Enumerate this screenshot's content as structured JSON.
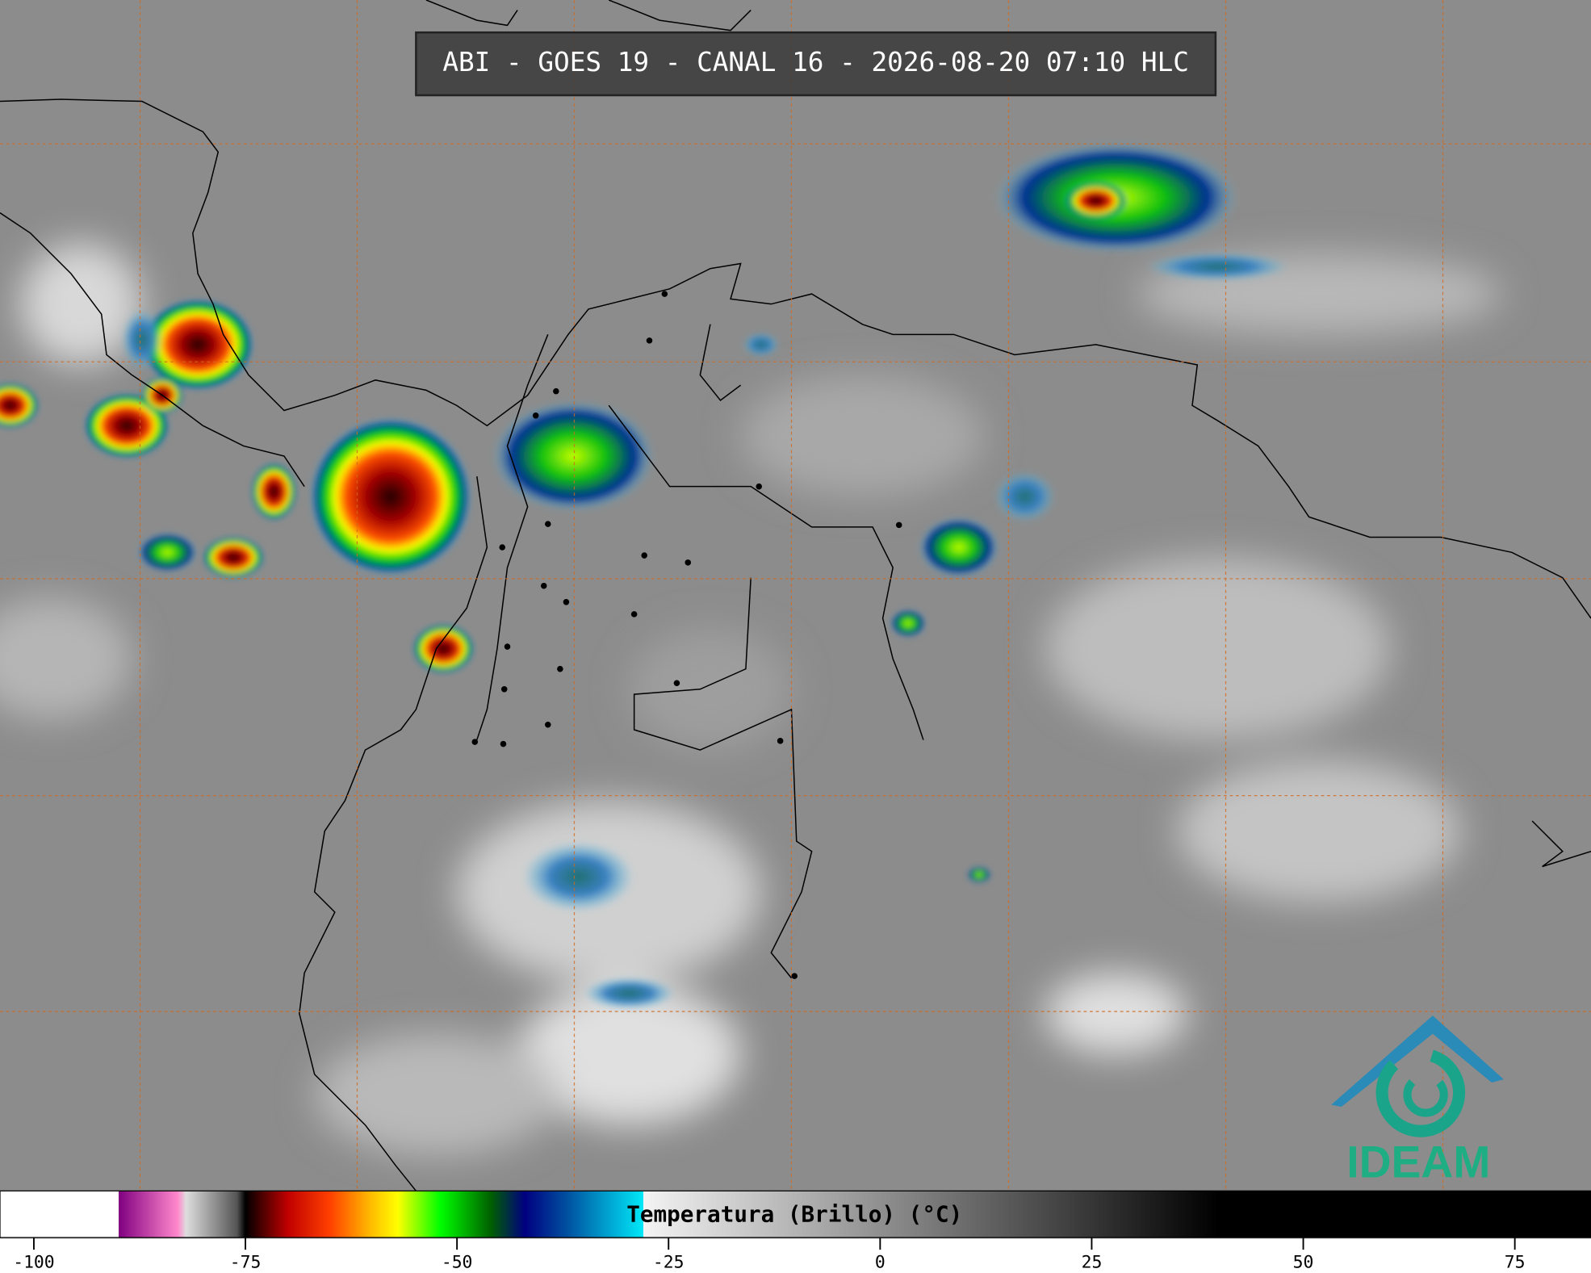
{
  "title": "ABI - GOES 19 - CANAL 16 - 2026-08-20 07:10 HLC",
  "logo": "IDEAM",
  "colorbar": {
    "label": "Temperatura (Brillo) (°C)",
    "xlim": [
      -104,
      84
    ],
    "xticks": [
      -100,
      -75,
      -50,
      -25,
      0,
      25,
      50,
      75
    ],
    "colormap": [
      {
        "value": -104,
        "color": "#ffffff"
      },
      {
        "value": -90,
        "color": "#ffffff"
      },
      {
        "value": -90,
        "color": "#800080"
      },
      {
        "value": -83,
        "color": "#ff88cc"
      },
      {
        "value": -82,
        "color": "#dddddd"
      },
      {
        "value": -76,
        "color": "#555555"
      },
      {
        "value": -75,
        "color": "#000000"
      },
      {
        "value": -70,
        "color": "#c00000"
      },
      {
        "value": -65,
        "color": "#ff4000"
      },
      {
        "value": -60,
        "color": "#ffc000"
      },
      {
        "value": -57,
        "color": "#ffff00"
      },
      {
        "value": -52,
        "color": "#00ff00"
      },
      {
        "value": -46,
        "color": "#006000"
      },
      {
        "value": -42,
        "color": "#000080"
      },
      {
        "value": -37,
        "color": "#0050a0"
      },
      {
        "value": -28,
        "color": "#00e8f8"
      },
      {
        "value": -28,
        "color": "#f4f4f4"
      },
      {
        "value": 40,
        "color": "#000000"
      },
      {
        "value": 84,
        "color": "#000000"
      }
    ]
  }
}
